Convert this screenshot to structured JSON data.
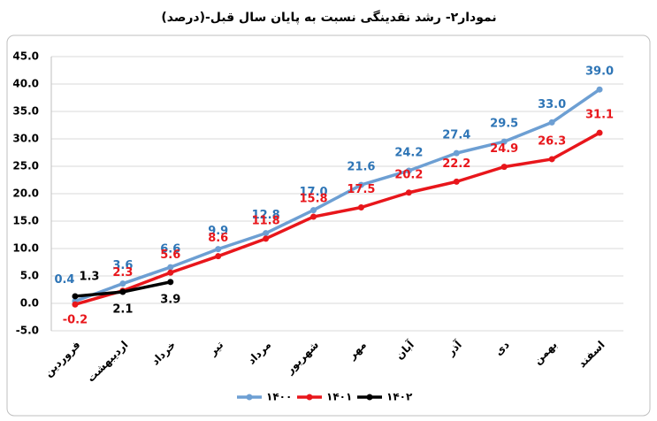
{
  "chart_data": {
    "type": "line",
    "title": "نمودار۲- رشد نقدینگی نسبت به پایان سال قبل-(درصد)",
    "categories": [
      "فروردین",
      "اردیبهشت",
      "خرداد",
      "تیر",
      "مرداد",
      "شهریور",
      "مهر",
      "آبان",
      "آذر",
      "دی",
      "بهمن",
      "اسفند"
    ],
    "series": [
      {
        "name": "۱۴۰۰",
        "color": "#6d9fd3",
        "label_color": "#2e75b6",
        "values": [
          0.4,
          3.6,
          6.6,
          9.9,
          12.8,
          17.0,
          21.6,
          24.2,
          27.4,
          29.5,
          33.0,
          39.0
        ],
        "value_labels": [
          "0.4",
          "3.6",
          "6.6",
          "9.9",
          "12.8",
          "17.0",
          "21.6",
          "24.2",
          "27.4",
          "29.5",
          "33.0",
          "39.0"
        ]
      },
      {
        "name": "۱۴۰۱",
        "color": "#e8161b",
        "label_color": "#e8161b",
        "values": [
          -0.2,
          2.3,
          5.6,
          8.6,
          11.8,
          15.8,
          17.5,
          20.2,
          22.2,
          24.9,
          26.3,
          31.1
        ],
        "value_labels": [
          "-0.2",
          "2.3",
          "5.6",
          "8.6",
          "11.8",
          "15.8",
          "17.5",
          "20.2",
          "22.2",
          "24.9",
          "26.3",
          "31.1"
        ]
      },
      {
        "name": "۱۴۰۲",
        "color": "#000000",
        "label_color": "#000000",
        "values": [
          1.3,
          2.1,
          3.9,
          null,
          null,
          null,
          null,
          null,
          null,
          null,
          null,
          null
        ],
        "value_labels": [
          "1.3",
          "2.1",
          "3.9",
          null,
          null,
          null,
          null,
          null,
          null,
          null,
          null,
          null
        ]
      }
    ],
    "ylim": [
      -5,
      45
    ],
    "yticks": [
      {
        "value": -5,
        "label": "-5.0"
      },
      {
        "value": 0,
        "label": "0.0"
      },
      {
        "value": 5,
        "label": "5.0"
      },
      {
        "value": 10,
        "label": "10.0"
      },
      {
        "value": 15,
        "label": "15.0"
      },
      {
        "value": 20,
        "label": "20.0"
      },
      {
        "value": 25,
        "label": "25.0"
      },
      {
        "value": 30,
        "label": "30.0"
      },
      {
        "value": 35,
        "label": "35.0"
      },
      {
        "value": 40,
        "label": "40.0"
      },
      {
        "value": 45,
        "label": "45.0"
      }
    ],
    "grid": true,
    "legend": "bottom"
  }
}
